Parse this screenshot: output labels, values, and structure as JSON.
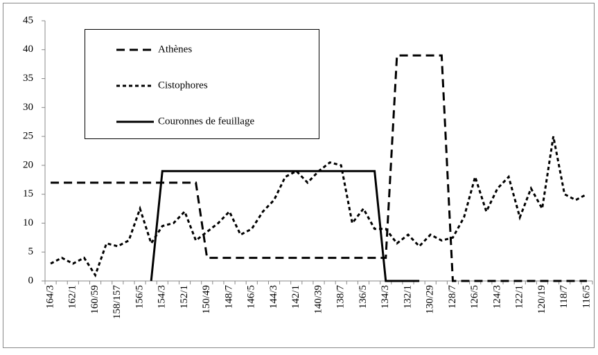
{
  "chart_data": {
    "type": "line",
    "categories": [
      "164/3",
      null,
      "162/1",
      null,
      "160/59",
      null,
      "158/157",
      null,
      "156/5",
      null,
      "154/3",
      null,
      "152/1",
      null,
      "150/49",
      null,
      "148/7",
      null,
      "146/5",
      null,
      "144/3",
      null,
      "142/1",
      null,
      "140/39",
      null,
      "138/7",
      null,
      "136/5",
      null,
      "134/3",
      null,
      "132/1",
      null,
      "130/29",
      null,
      "128/7",
      null,
      "126/5",
      null,
      "124/3",
      null,
      "122/1",
      null,
      "120/19",
      null,
      "118/7",
      null,
      "116/5"
    ],
    "series": [
      {
        "name": "Athènes",
        "color": "#000000",
        "dash": "long",
        "values": [
          17,
          17,
          17,
          17,
          17,
          17,
          17,
          17,
          17,
          17,
          17,
          17,
          17,
          17,
          4,
          4,
          4,
          4,
          4,
          4,
          4,
          4,
          4,
          4,
          4,
          4,
          4,
          4,
          4,
          4,
          4,
          39,
          39,
          39,
          39,
          39,
          0,
          0,
          0,
          0,
          0,
          0,
          0,
          0,
          0,
          0,
          0,
          0,
          0
        ]
      },
      {
        "name": "Cistophores",
        "color": "#000000",
        "dash": "short",
        "values": [
          3,
          4,
          3,
          4,
          1,
          6.5,
          6,
          7,
          12.5,
          6.5,
          9.5,
          10,
          12,
          7,
          8.5,
          10,
          12,
          8,
          9,
          12,
          14,
          18,
          19,
          17,
          19,
          20.5,
          20,
          10,
          12.5,
          9,
          9,
          6.5,
          8,
          6,
          8,
          7,
          7.5,
          11,
          18,
          12,
          16,
          18,
          11,
          16,
          12.5,
          25,
          15,
          14,
          15
        ]
      },
      {
        "name": "Couronnes de feuillage",
        "color": "#000000",
        "dash": "solid",
        "values": [
          null,
          null,
          null,
          null,
          null,
          null,
          null,
          null,
          null,
          0,
          19,
          19,
          19,
          19,
          19,
          19,
          19,
          19,
          19,
          19,
          19,
          19,
          19,
          19,
          19,
          19,
          19,
          19,
          19,
          19,
          0,
          0,
          0,
          0,
          null,
          null,
          null,
          null,
          null,
          null,
          null,
          null,
          null,
          null,
          null,
          null,
          null,
          null,
          null
        ]
      }
    ],
    "ylim": [
      0,
      45
    ],
    "yticks": [
      0,
      5,
      10,
      15,
      20,
      25,
      30,
      35,
      40,
      45
    ],
    "grid": false,
    "legend": "upper-left"
  }
}
